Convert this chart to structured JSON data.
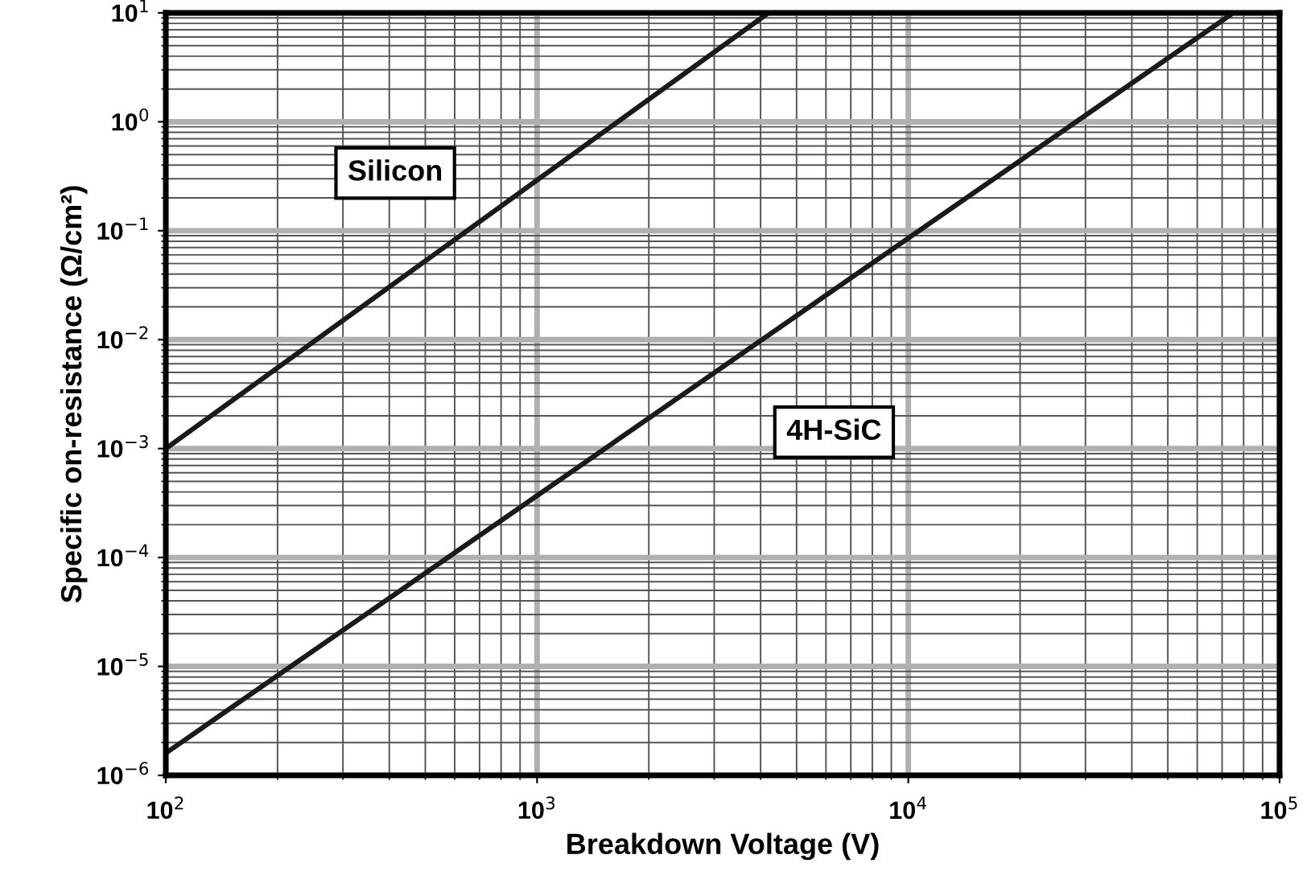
{
  "chart_data": {
    "type": "line",
    "xlabel": "Breakdown Voltage (V)",
    "ylabel": "Specific on-resistance (Ω/cm²)",
    "log": "xy",
    "grid": true,
    "legend": false,
    "marker": "none",
    "line_style": "solid",
    "xlim": [
      100,
      100000
    ],
    "ylim": [
      1e-06,
      10
    ],
    "xticks": [
      {
        "value": 100,
        "label": "10$^{2}$"
      },
      {
        "value": 1000,
        "label": "10$^{3}$"
      },
      {
        "value": 10000,
        "label": "10$^{4}$"
      },
      {
        "value": 100000,
        "label": "10$^{5}$"
      }
    ],
    "yticks": [
      {
        "value": 1e-06,
        "label": "10$^{−6}$"
      },
      {
        "value": 1e-05,
        "label": "10$^{−5}$"
      },
      {
        "value": 0.0001,
        "label": "10$^{−4}$"
      },
      {
        "value": 0.001,
        "label": "10$^{−3}$"
      },
      {
        "value": 0.01,
        "label": "10$^{−2}$"
      },
      {
        "value": 0.1,
        "label": "10$^{−1}$"
      },
      {
        "value": 1,
        "label": "10$^{0}$"
      },
      {
        "value": 10,
        "label": "10$^{1}$"
      }
    ],
    "series": [
      {
        "name": "Silicon",
        "color": "#1a1a1a",
        "x": [
          100,
          4200
        ],
        "values": [
          0.001,
          10
        ]
      },
      {
        "name": "4H-SiC",
        "color": "#1a1a1a",
        "x": [
          100,
          75000
        ],
        "values": [
          1.6e-06,
          10
        ]
      }
    ]
  }
}
